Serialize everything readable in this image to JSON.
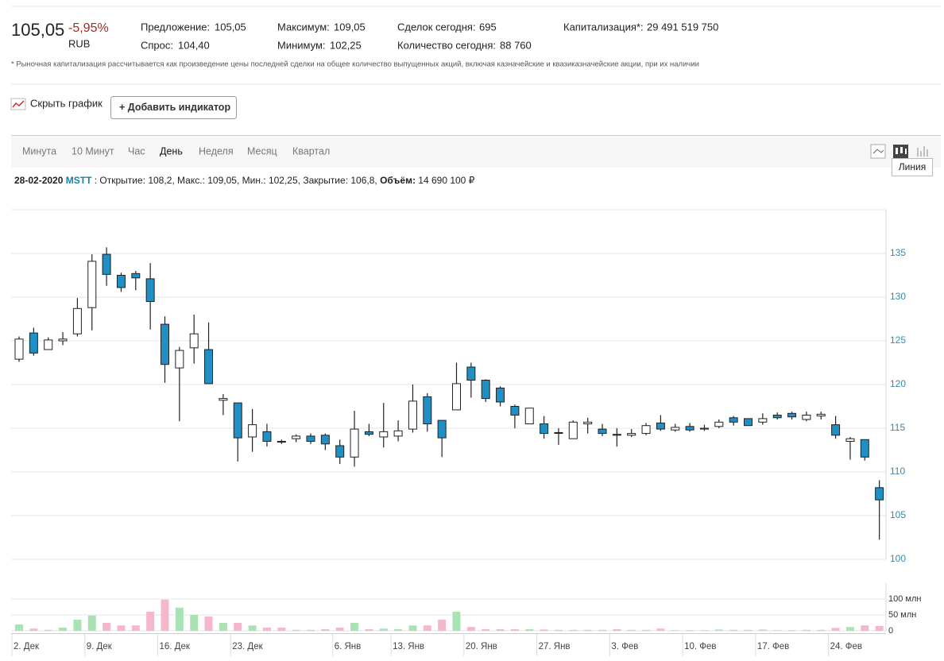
{
  "quote": {
    "price": "105,05",
    "change": "-5,95%",
    "currency": "RUB"
  },
  "stats": [
    {
      "label": "Предложение:",
      "value": "105,05"
    },
    {
      "label": "Спрос:",
      "value": "104,40"
    },
    {
      "label": "Максимум:",
      "value": "109,05"
    },
    {
      "label": "Минимум:",
      "value": "102,25"
    },
    {
      "label": "Сделок сегодня:",
      "value": "695"
    },
    {
      "label": "Количество сегодня:",
      "value": "88 760"
    },
    {
      "label": "Капитализация*:",
      "value": "29 491 519 750"
    }
  ],
  "footnote": "* Рыночная капитализация рассчитывается как произведение цены последней сделки на общее количество выпущенных акций, включая казначейские и квазиказначейские акции, при их наличии",
  "toolbar": {
    "hide_chart": "Скрыть график",
    "add_indicator": "+ Добавить индикатор"
  },
  "periods": [
    "Минута",
    "10 Минут",
    "Час",
    "День",
    "Неделя",
    "Месяц",
    "Квартал"
  ],
  "active_period": 3,
  "tooltip": "Линия",
  "info": {
    "date": "28-02-2020",
    "ticker": "MSTT",
    "items": [
      ": Открытие: 108,2,",
      "Макс.: 109,05,",
      "Мин.: 102,25,",
      "Закрытие: 106,8,"
    ],
    "volume_label": "Объём:",
    "volume_value": "14 690 100 ₽"
  },
  "chart_data": {
    "type": "candlestick",
    "categories": [
      "2. Дек",
      null,
      null,
      null,
      null,
      "9. Дек",
      null,
      null,
      null,
      null,
      "16. Дек",
      null,
      null,
      null,
      null,
      "23. Дек",
      null,
      null,
      null,
      null,
      null,
      null,
      "6. Янв",
      null,
      null,
      null,
      "13. Янв",
      null,
      null,
      null,
      null,
      "20. Янв",
      null,
      null,
      null,
      null,
      "27. Янв",
      null,
      null,
      null,
      null,
      "3. Фев",
      null,
      null,
      null,
      null,
      "10. Фев",
      null,
      null,
      null,
      null,
      "17. Фев",
      null,
      null,
      null,
      null,
      "24. Фев",
      null,
      null,
      null
    ],
    "open": [
      122.9,
      125.9,
      124.0,
      125.0,
      125.8,
      128.8,
      134.9,
      132.5,
      132.7,
      132.1,
      126.9,
      121.9,
      124.2,
      124.0,
      118.2,
      117.9,
      114.0,
      114.6,
      113.5,
      113.8,
      114.1,
      114.2,
      113.0,
      111.7,
      114.6,
      114.0,
      114.1,
      114.9,
      118.6,
      115.9,
      117.1,
      122.0,
      120.5,
      119.6,
      117.5,
      115.5,
      115.5,
      114.5,
      113.8,
      115.5,
      114.9,
      114.3,
      114.2,
      114.4,
      115.6,
      114.8,
      115.2,
      114.9,
      115.2,
      116.2,
      116.1,
      115.7,
      116.5,
      116.7,
      116.0,
      116.4,
      115.4,
      113.5,
      113.7,
      108.2
    ],
    "high": [
      125.5,
      126.5,
      125.4,
      126.0,
      129.9,
      134.9,
      135.7,
      132.8,
      133.0,
      133.9,
      127.8,
      124.3,
      128.0,
      127.1,
      118.9,
      117.9,
      117.2,
      115.5,
      113.7,
      114.3,
      114.4,
      114.4,
      113.7,
      117.0,
      115.5,
      117.9,
      115.9,
      120.0,
      119.0,
      115.9,
      122.5,
      122.5,
      120.6,
      119.8,
      117.7,
      117.3,
      116.4,
      115.0,
      115.9,
      116.2,
      115.5,
      115.0,
      114.9,
      115.6,
      116.5,
      115.5,
      115.6,
      115.4,
      116.0,
      116.4,
      116.1,
      116.7,
      116.8,
      116.9,
      116.9,
      116.9,
      116.4,
      114.0,
      113.7,
      109.05
    ],
    "low": [
      122.6,
      123.3,
      124.0,
      124.5,
      125.5,
      126.2,
      131.3,
      130.6,
      130.8,
      126.3,
      120.2,
      115.8,
      122.4,
      120.1,
      116.5,
      111.2,
      112.3,
      112.9,
      113.2,
      113.4,
      113.2,
      112.5,
      110.9,
      110.6,
      114.1,
      112.8,
      113.5,
      114.5,
      114.6,
      111.7,
      117.1,
      118.5,
      118.0,
      117.5,
      115.0,
      115.5,
      113.8,
      113.1,
      113.8,
      114.4,
      114.1,
      112.9,
      114.0,
      114.2,
      114.7,
      114.6,
      114.6,
      114.7,
      115.0,
      115.3,
      115.3,
      115.4,
      116.0,
      116.0,
      115.8,
      116.0,
      113.8,
      111.4,
      111.3,
      102.25
    ],
    "close": [
      125.2,
      123.6,
      125.1,
      125.2,
      128.7,
      134.1,
      132.6,
      131.1,
      132.2,
      129.5,
      122.3,
      123.9,
      125.8,
      120.1,
      118.4,
      113.9,
      115.4,
      113.5,
      113.4,
      114.1,
      113.5,
      113.2,
      111.7,
      114.9,
      114.3,
      114.6,
      114.7,
      118.1,
      115.5,
      113.9,
      120.1,
      120.5,
      118.4,
      118.0,
      116.5,
      117.3,
      114.4,
      114.5,
      115.7,
      115.7,
      114.4,
      114.2,
      114.4,
      115.3,
      114.9,
      115.1,
      114.8,
      115.0,
      115.7,
      115.7,
      115.3,
      116.1,
      116.2,
      116.3,
      116.5,
      116.6,
      114.2,
      113.8,
      111.7,
      106.8
    ],
    "volume": [
      20,
      7,
      3,
      10,
      35,
      48,
      25,
      17,
      17,
      60,
      98,
      73,
      50,
      45,
      25,
      25,
      17,
      10,
      10,
      3,
      3,
      5,
      10,
      25,
      5,
      7,
      5,
      17,
      17,
      35,
      60,
      12,
      5,
      5,
      5,
      5,
      4,
      3,
      3,
      3,
      3,
      5,
      3,
      3,
      7,
      2,
      2,
      2,
      4,
      3,
      3,
      4,
      2,
      2,
      3,
      3,
      9,
      12,
      17,
      15
    ],
    "ylim": [
      100,
      140
    ],
    "yticks": [
      100,
      105,
      110,
      115,
      120,
      125,
      130,
      135
    ],
    "volume_ylim": [
      0,
      150
    ],
    "volume_ticks": [
      0,
      {
        "value": 50,
        "label": "50 млн"
      },
      {
        "value": 100,
        "label": "100 млн"
      }
    ],
    "grid": true,
    "up_color": "#ffffff",
    "down_color": "#1f8fc4",
    "volume_up_color": "#a8e4b3",
    "volume_down_color": "#f5b8ca"
  }
}
